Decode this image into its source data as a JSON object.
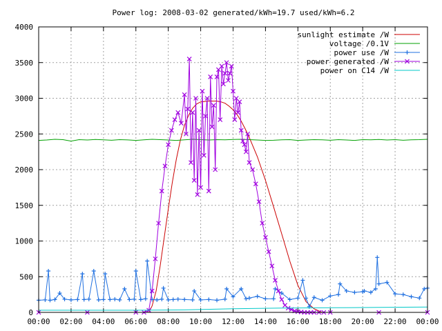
{
  "chart_data": {
    "type": "line",
    "title": "Power log: 2008-03-02 generated/kWh=19.7 used/kWh=6.2",
    "xlabel": "",
    "ylabel": "",
    "xlim": [
      0,
      24
    ],
    "ylim": [
      0,
      4000
    ],
    "x_ticks": [
      "00:00",
      "02:00",
      "04:00",
      "06:00",
      "08:00",
      "10:00",
      "12:00",
      "14:00",
      "16:00",
      "18:00",
      "20:00",
      "22:00",
      "00:00"
    ],
    "y_ticks": [
      "0",
      "500",
      "1000",
      "1500",
      "2000",
      "2500",
      "3000",
      "3500",
      "4000"
    ],
    "grid": true,
    "legend_position": "top-right",
    "series": [
      {
        "name": "sunlight estimate /W",
        "color": "#cc0000",
        "style": "line",
        "x": [
          0,
          6.8,
          7.0,
          7.25,
          7.5,
          7.75,
          8.0,
          8.25,
          8.5,
          8.75,
          9.0,
          9.25,
          9.5,
          9.75,
          10.0,
          10.5,
          11.0,
          11.25,
          11.5,
          11.75,
          12.0,
          12.25,
          12.5,
          12.75,
          13.0,
          13.5,
          14.0,
          14.5,
          15.0,
          15.5,
          16.0,
          16.5,
          17.0,
          17.5,
          24
        ],
        "y": [
          0,
          0,
          90,
          300,
          650,
          1050,
          1450,
          1820,
          2150,
          2420,
          2620,
          2760,
          2860,
          2920,
          2950,
          2960,
          2960,
          2950,
          2930,
          2890,
          2840,
          2770,
          2680,
          2570,
          2450,
          2180,
          1850,
          1480,
          1100,
          720,
          380,
          150,
          50,
          0,
          0
        ]
      },
      {
        "name": "voltage /0.1V",
        "color": "#00a000",
        "style": "line",
        "x": [
          0,
          0.5,
          1,
          1.5,
          2,
          2.5,
          3,
          3.5,
          4,
          4.5,
          5,
          5.5,
          6,
          6.5,
          7,
          7.5,
          8,
          8.5,
          9,
          9.5,
          10,
          10.5,
          11,
          11.5,
          12,
          12.5,
          13,
          13.5,
          14,
          14.5,
          15,
          15.5,
          16,
          16.5,
          17,
          17.5,
          18,
          18.5,
          19,
          19.5,
          20,
          20.5,
          21,
          21.5,
          22,
          22.5,
          23,
          23.5,
          24
        ],
        "y": [
          2410,
          2415,
          2425,
          2420,
          2400,
          2420,
          2415,
          2422,
          2418,
          2412,
          2420,
          2416,
          2410,
          2418,
          2425,
          2420,
          2415,
          2410,
          2418,
          2425,
          2420,
          2415,
          2420,
          2418,
          2422,
          2425,
          2420,
          2415,
          2410,
          2412,
          2418,
          2420,
          2410,
          2415,
          2420,
          2418,
          2412,
          2420,
          2415,
          2410,
          2420,
          2418,
          2422,
          2415,
          2420,
          2412,
          2418,
          2420,
          2425
        ]
      },
      {
        "name": "power use /W",
        "color": "#1e6fe0",
        "style": "linespoints",
        "marker": "plus",
        "x": [
          0,
          0.4,
          0.6,
          0.7,
          1.0,
          1.3,
          1.6,
          2.0,
          2.4,
          2.7,
          2.8,
          3.1,
          3.4,
          3.7,
          4.0,
          4.1,
          4.4,
          4.7,
          5.0,
          5.3,
          5.6,
          5.9,
          6.0,
          6.3,
          6.6,
          6.7,
          7.0,
          7.3,
          7.6,
          7.7,
          8.0,
          8.3,
          8.6,
          9.0,
          9.5,
          9.6,
          10.0,
          10.5,
          11.0,
          11.5,
          11.6,
          12.0,
          12.5,
          12.8,
          13.0,
          13.5,
          14.0,
          14.5,
          14.6,
          15.0,
          15.5,
          16.0,
          16.3,
          16.5,
          16.7,
          17.0,
          17.5,
          18.0,
          18.5,
          18.6,
          19.0,
          19.5,
          20.0,
          20.1,
          20.5,
          20.8,
          20.9,
          21.0,
          21.5,
          22.0,
          22.5,
          23.0,
          23.5,
          23.8,
          24
        ],
        "y": [
          170,
          175,
          580,
          170,
          180,
          270,
          185,
          175,
          180,
          540,
          180,
          185,
          580,
          175,
          180,
          540,
          180,
          185,
          175,
          330,
          180,
          185,
          580,
          180,
          190,
          720,
          180,
          175,
          185,
          340,
          175,
          180,
          185,
          180,
          175,
          300,
          175,
          180,
          170,
          185,
          330,
          220,
          330,
          190,
          200,
          225,
          190,
          190,
          330,
          270,
          180,
          200,
          450,
          200,
          80,
          210,
          170,
          230,
          250,
          400,
          300,
          280,
          290,
          300,
          280,
          330,
          770,
          400,
          420,
          260,
          250,
          220,
          200,
          330,
          340
        ]
      },
      {
        "name": "power generated /W",
        "color": "#a000e0",
        "style": "linespoints",
        "marker": "cross",
        "x": [
          0,
          3,
          6.0,
          6.5,
          6.8,
          7.0,
          7.2,
          7.4,
          7.6,
          7.8,
          8.0,
          8.2,
          8.4,
          8.6,
          8.8,
          9.0,
          9.1,
          9.2,
          9.3,
          9.4,
          9.5,
          9.6,
          9.7,
          9.8,
          9.9,
          10.0,
          10.1,
          10.2,
          10.3,
          10.4,
          10.5,
          10.6,
          10.7,
          10.8,
          10.9,
          11.0,
          11.1,
          11.2,
          11.3,
          11.4,
          11.5,
          11.6,
          11.7,
          11.8,
          11.9,
          12.0,
          12.1,
          12.2,
          12.3,
          12.4,
          12.5,
          12.6,
          12.7,
          12.8,
          12.9,
          13.0,
          13.2,
          13.4,
          13.6,
          13.8,
          14.0,
          14.2,
          14.4,
          14.6,
          14.8,
          15.0,
          15.2,
          15.4,
          15.6,
          15.8,
          16.0,
          16.2,
          16.4,
          16.6,
          16.8,
          17.0,
          17.3,
          17.6,
          18.0,
          21,
          24
        ],
        "y": [
          0,
          0,
          0,
          0,
          30,
          300,
          750,
          1250,
          1700,
          2050,
          2350,
          2550,
          2700,
          2800,
          2650,
          3050,
          2500,
          2850,
          3550,
          2100,
          2800,
          1850,
          3000,
          1650,
          2550,
          1750,
          3100,
          2200,
          2750,
          3000,
          1700,
          3300,
          2600,
          2900,
          2000,
          3300,
          3400,
          2700,
          3450,
          3200,
          3350,
          3500,
          3250,
          3350,
          3450,
          3100,
          2700,
          3000,
          2800,
          2950,
          2550,
          2400,
          2350,
          2250,
          2500,
          2100,
          2000,
          1800,
          1550,
          1250,
          1050,
          850,
          650,
          450,
          300,
          180,
          100,
          60,
          40,
          20,
          10,
          5,
          0,
          0,
          0,
          0,
          0,
          0,
          0,
          0,
          0
        ]
      },
      {
        "name": "power on C14 /W",
        "color": "#00c8c8",
        "style": "line",
        "x": [
          0,
          3,
          6,
          9,
          12,
          15,
          18,
          21,
          24
        ],
        "y": [
          30,
          30,
          30,
          35,
          50,
          60,
          65,
          70,
          75
        ]
      }
    ]
  }
}
